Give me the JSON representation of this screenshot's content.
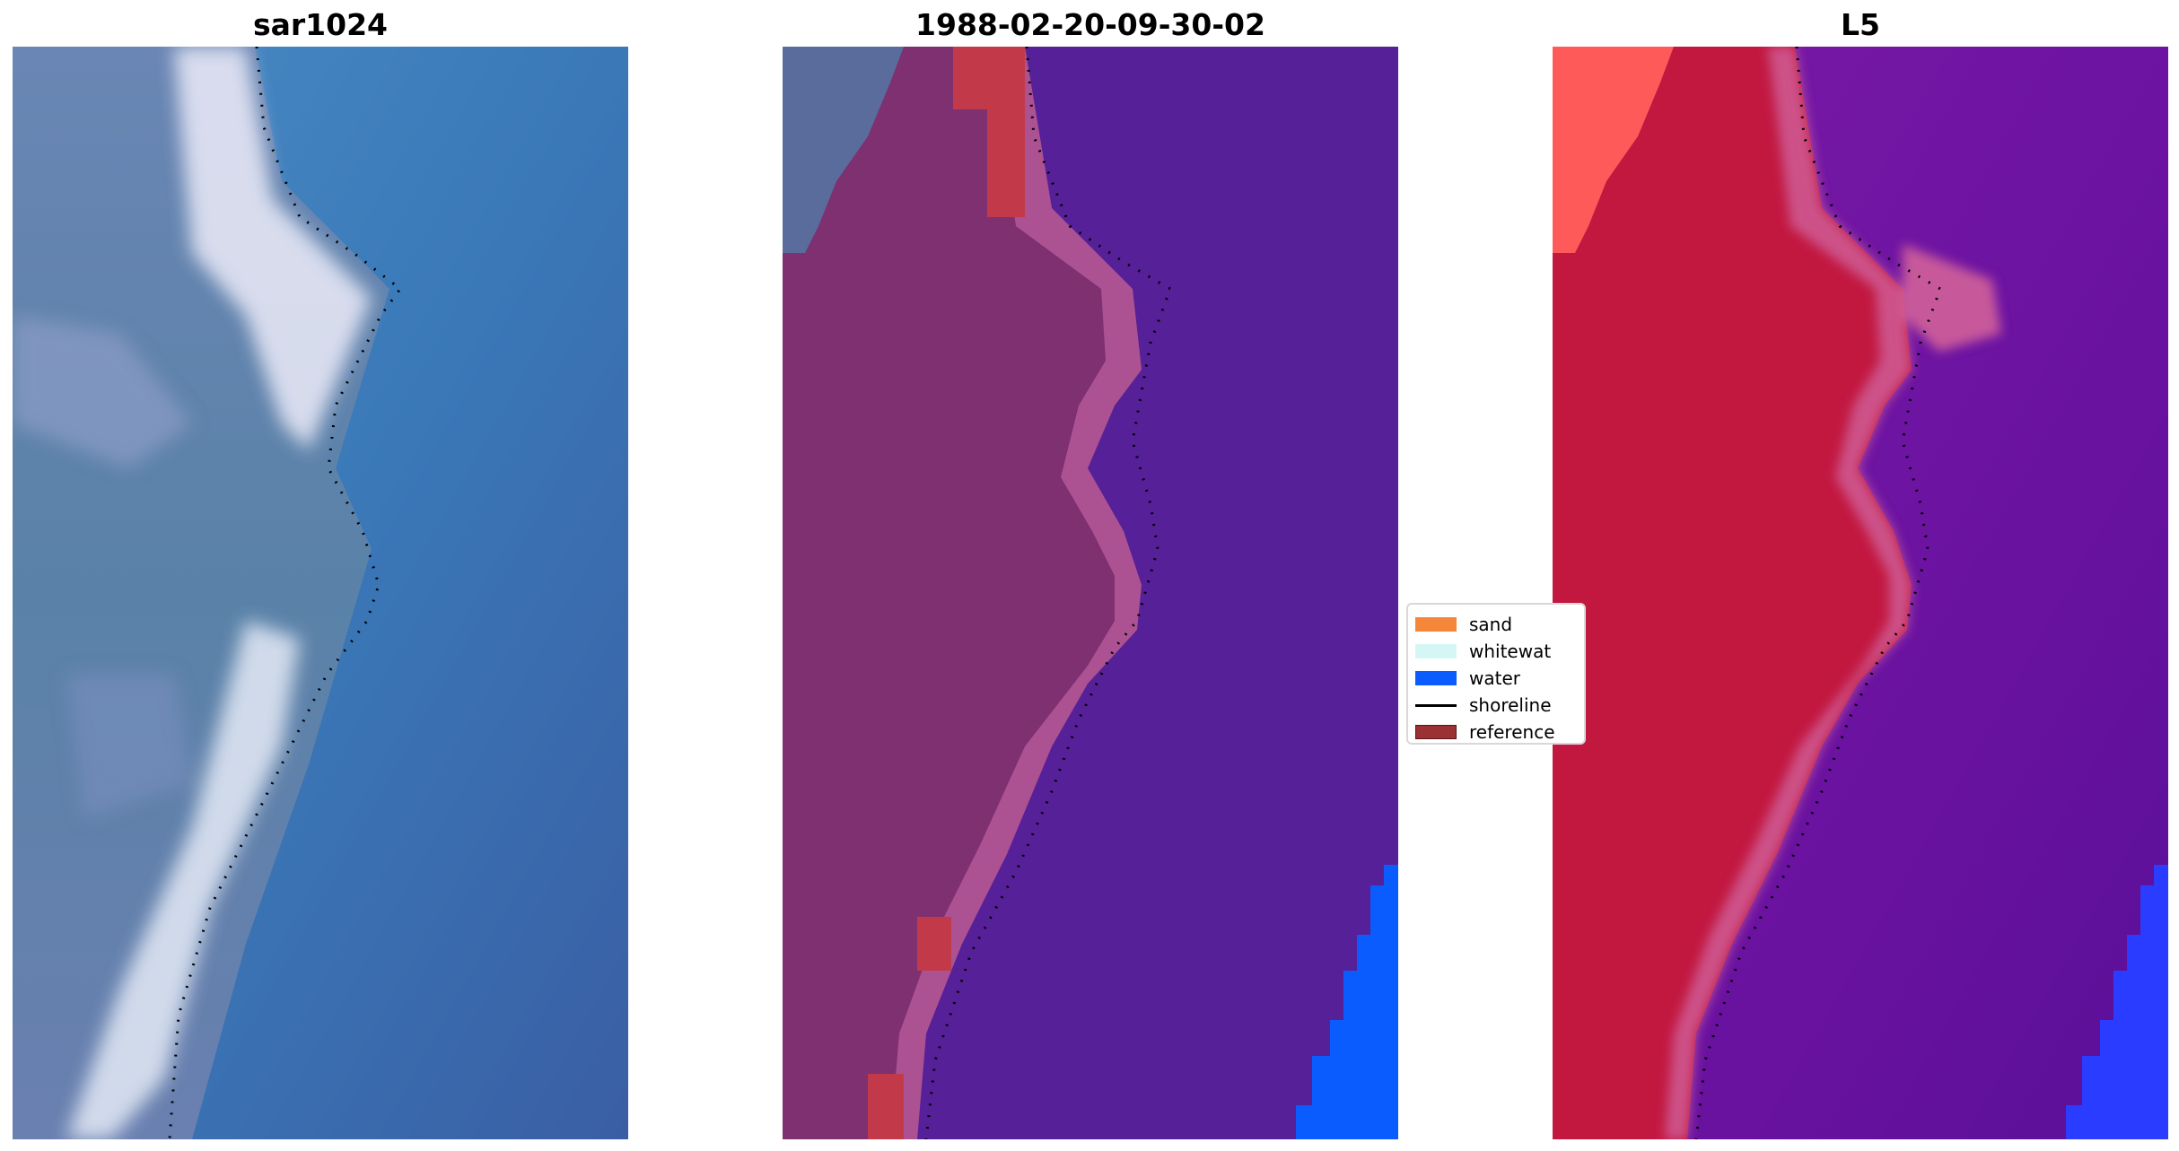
{
  "panels": [
    {
      "title": "sar1024"
    },
    {
      "title": "1988-02-20-09-30-02"
    },
    {
      "title": "L5"
    }
  ],
  "legend": {
    "items": [
      {
        "label": "sand",
        "color": "#f5873a",
        "kind": "patch"
      },
      {
        "label": "whitewat",
        "color": "#d4f7f5",
        "kind": "patch"
      },
      {
        "label": "water",
        "color": "#0a5cff",
        "kind": "patch"
      },
      {
        "label": "shoreline",
        "color": "#000000",
        "kind": "line"
      },
      {
        "label": "reference",
        "color": "#9b3035",
        "kind": "patch"
      }
    ]
  },
  "colors": {
    "sar_water": "#3b72b0",
    "sar_land": "#5a7ea8",
    "sar_white": "#e8ecf6",
    "class_water": "#562099",
    "class_land": "#7e3070",
    "class_edge": "#b45898",
    "class_reference": "#c23a4a",
    "class_topleft": "#5a6c9c",
    "class_bluewater": "#0a5cff",
    "l5_land": "#c21840",
    "l5_water": "#6a14a2",
    "l5_edge": "#d0609a",
    "l5_topleft": "#ff5a5a",
    "l5_blue": "#2a3cff"
  }
}
